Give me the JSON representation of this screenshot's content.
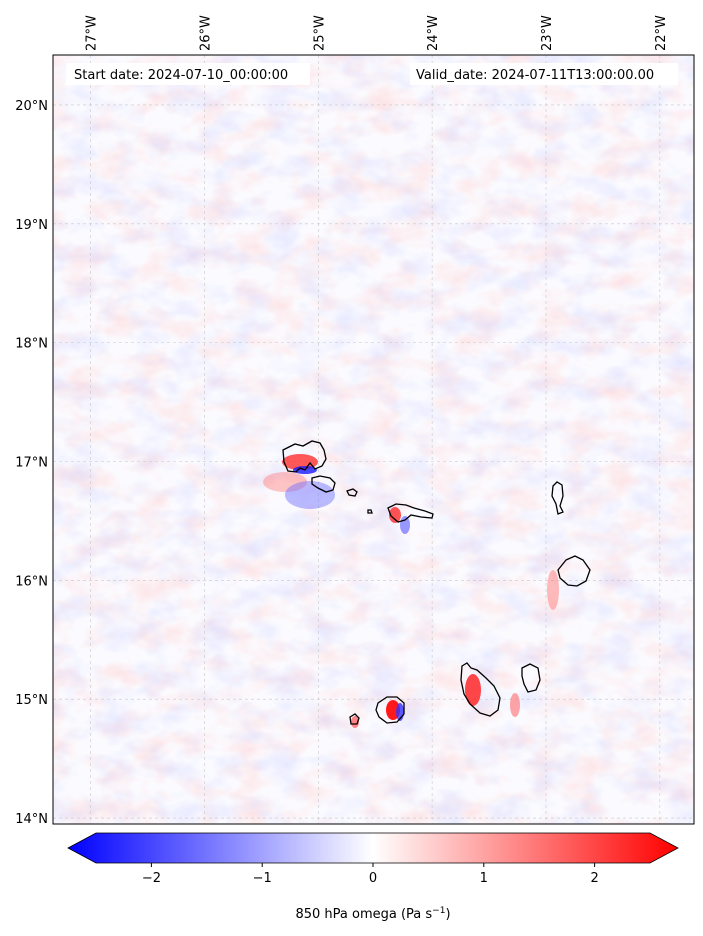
{
  "map": {
    "start_label": "Start date: 2024-07-10_00:00:00",
    "valid_label": "Valid_date: 2024-07-11T13:00:00.00",
    "lon_ticks": [
      "27°W",
      "26°W",
      "25°W",
      "24°W",
      "23°W",
      "22°W"
    ],
    "lat_ticks": [
      "20°N",
      "19°N",
      "18°N",
      "17°N",
      "16°N",
      "15°N",
      "14°N"
    ],
    "lon_values": [
      -27,
      -26,
      -25,
      -24,
      -23,
      -22
    ],
    "lat_values": [
      20,
      19,
      18,
      17,
      16,
      15,
      14
    ],
    "extent": {
      "lon_min": -27.33,
      "lon_max": -21.7,
      "lat_min": 13.95,
      "lat_max": 20.42
    },
    "variable": "850 hPa omega",
    "gridlines": true
  },
  "colorbar": {
    "ticks": [
      "−2",
      "−1",
      "0",
      "1",
      "2"
    ],
    "tick_values": [
      -2,
      -1,
      0,
      1,
      2
    ],
    "range": [
      -2.5,
      2.5
    ],
    "extend": "both",
    "label_main": "850 hPa omega (Pa s",
    "label_sup": "−1",
    "label_close": ")",
    "colors": {
      "min": "#0000ff",
      "mid": "#ffffff",
      "max": "#ff0000"
    }
  },
  "colors": {
    "coastline": "#000000",
    "grid": "#c8c8c8"
  }
}
